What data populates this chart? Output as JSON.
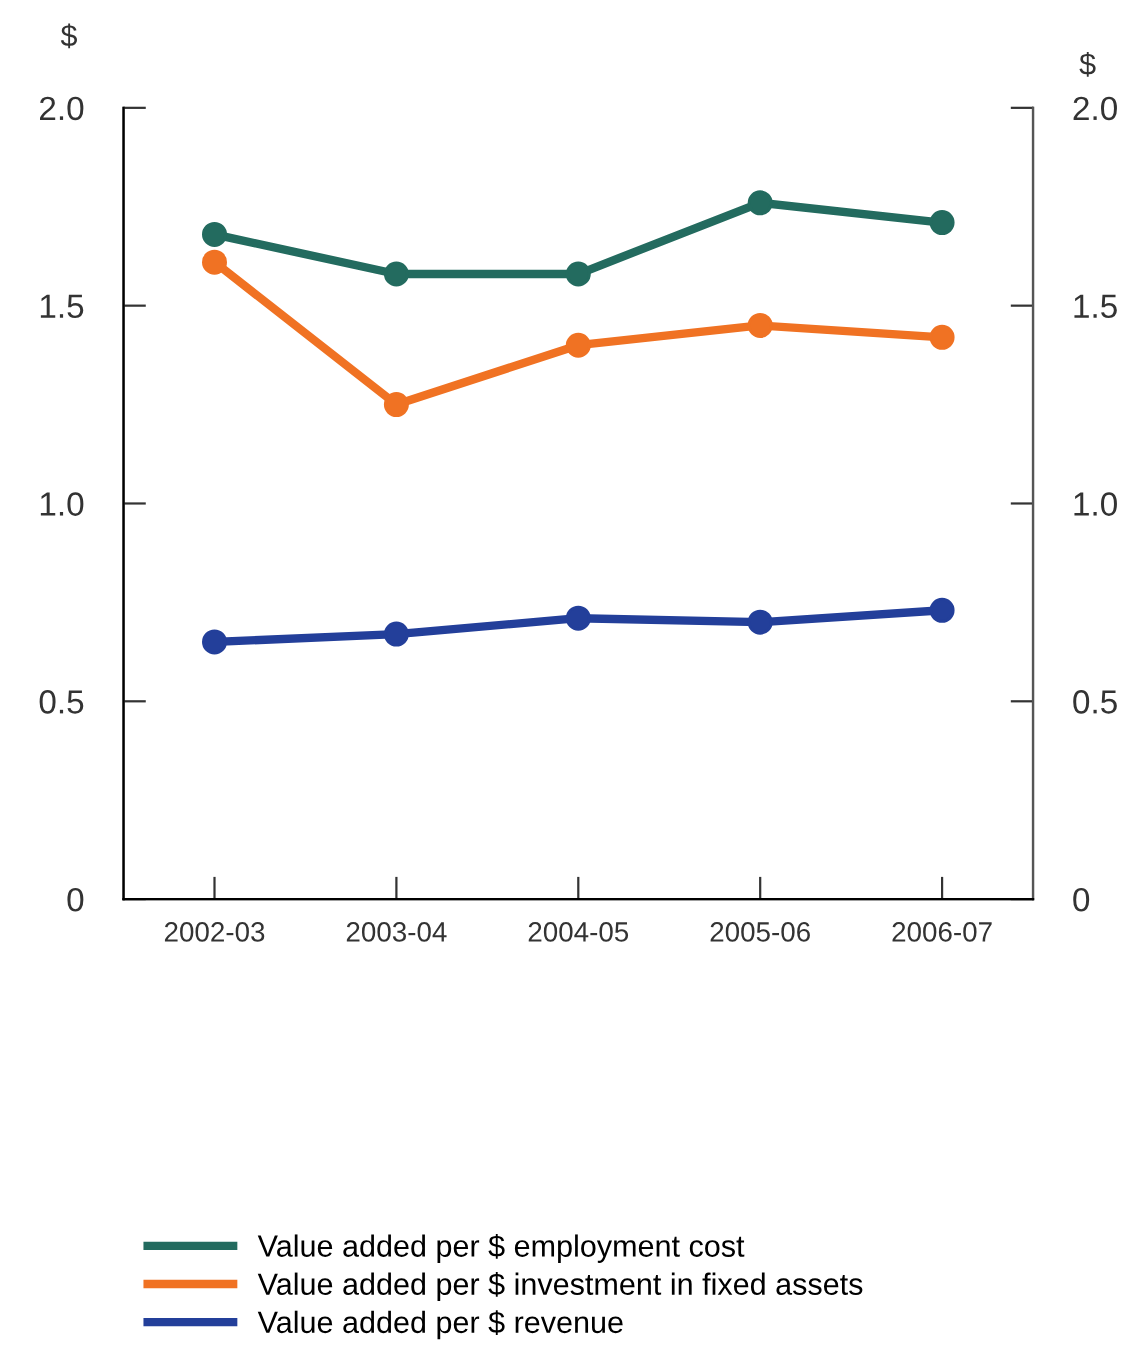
{
  "chart_data": {
    "type": "line",
    "ylabel": "$",
    "y2label": "$",
    "categories": [
      "2002-03",
      "2003-04",
      "2004-05",
      "2005-06",
      "2006-07"
    ],
    "series": [
      {
        "name": "Value added per $ employment cost",
        "color": "#236b5f",
        "values": [
          1.68,
          1.58,
          1.58,
          1.76,
          1.71
        ]
      },
      {
        "name": "Value added per $ investment in fixed assets",
        "color": "#f07223",
        "values": [
          1.61,
          1.25,
          1.4,
          1.45,
          1.42
        ]
      },
      {
        "name": "Value added per $ revenue",
        "color": "#233f9a",
        "values": [
          0.65,
          0.67,
          0.71,
          0.7,
          0.73
        ]
      }
    ],
    "ylim": [
      0,
      2.0
    ],
    "yticks": [
      0,
      {
        "value": 0.5,
        "label": "0.5"
      },
      {
        "value": 1.0,
        "label": "1.0"
      },
      {
        "value": 1.5,
        "label": "1.5"
      },
      {
        "value": 2.0,
        "label": "2.0"
      }
    ],
    "y2lim": [
      0,
      2.0
    ],
    "y2ticks": [
      0,
      {
        "value": 0.5,
        "label": "0.5"
      },
      {
        "value": 1.0,
        "label": "1.0"
      },
      {
        "value": 1.5,
        "label": "1.5"
      },
      {
        "value": 2.0,
        "label": "2.0"
      }
    ],
    "marker": "circle",
    "line_style": "solid",
    "grid": false,
    "legend": "bottom"
  }
}
